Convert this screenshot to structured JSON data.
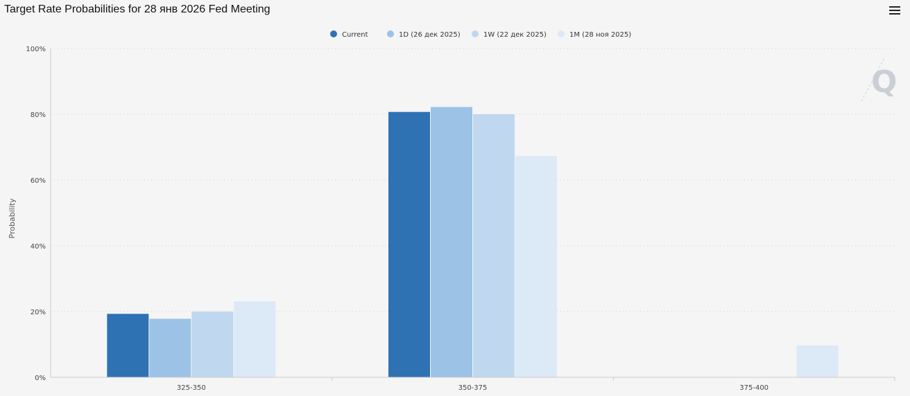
{
  "header": {
    "title": "Target Rate Probabilities for 28 янв 2026 Fed Meeting",
    "menu_icon": "hamburger-menu-icon"
  },
  "watermark": {
    "text": "Q",
    "icon": "quikstrike-logo-icon"
  },
  "chart_data": {
    "type": "bar",
    "title": "Target Rate Probabilities for 28 янв 2026 Fed Meeting",
    "xlabel": "",
    "ylabel": "Probability",
    "ylim": [
      0,
      100
    ],
    "yticks": [
      "0%",
      "20%",
      "40%",
      "60%",
      "80%",
      "100%"
    ],
    "categories": [
      "325-350",
      "350-375",
      "375-400"
    ],
    "series": [
      {
        "name": "Current",
        "color": "#2e72b4",
        "values": [
          19.3,
          80.7,
          0
        ]
      },
      {
        "name": "1D (26 дек 2025)",
        "color": "#9cc2e6",
        "values": [
          17.8,
          82.2,
          0
        ]
      },
      {
        "name": "1W (22 дек 2025)",
        "color": "#bfd8ef",
        "values": [
          20.0,
          80.0,
          0
        ]
      },
      {
        "name": "1M (28 ноя 2025)",
        "color": "#dce9f6",
        "values": [
          23.1,
          67.3,
          9.7
        ]
      }
    ],
    "legend_position": "top-center",
    "grid": true
  }
}
